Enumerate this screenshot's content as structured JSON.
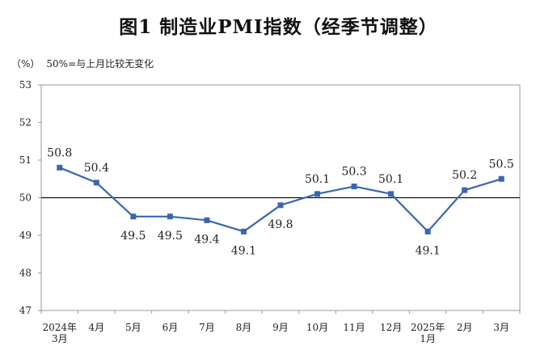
{
  "chart_data": {
    "type": "line",
    "title": "图1  制造业PMI指数（经季节调整）",
    "unit": "（%）",
    "note": "50%=与上月比较无变化",
    "categories": [
      [
        "2024年",
        "3月"
      ],
      [
        "4月"
      ],
      [
        "5月"
      ],
      [
        "6月"
      ],
      [
        "7月"
      ],
      [
        "8月"
      ],
      [
        "9月"
      ],
      [
        "10月"
      ],
      [
        "11月"
      ],
      [
        "12月"
      ],
      [
        "2025年",
        "1月"
      ],
      [
        "2月"
      ],
      [
        "3月"
      ]
    ],
    "series": [
      {
        "values": [
          50.8,
          50.4,
          49.5,
          49.5,
          49.4,
          49.1,
          49.8,
          50.1,
          50.3,
          50.1,
          49.1,
          50.2,
          50.5
        ],
        "labels": [
          "50.8",
          "50.4",
          "49.5",
          "49.5",
          "49.4",
          "49.1",
          "49.8",
          "50.1",
          "50.3",
          "50.1",
          "49.1",
          "50.2",
          "50.5"
        ],
        "label_position": [
          "above",
          "above",
          "below",
          "below",
          "below",
          "below",
          "below",
          "above",
          "above",
          "above",
          "below",
          "above",
          "above"
        ],
        "color": "#3a66b0"
      }
    ],
    "ylim": [
      47,
      53
    ],
    "yticks": [
      "47",
      "48",
      "49",
      "50",
      "51",
      "52",
      "53"
    ],
    "reference_line": 50,
    "grid": false,
    "legend": "none"
  }
}
